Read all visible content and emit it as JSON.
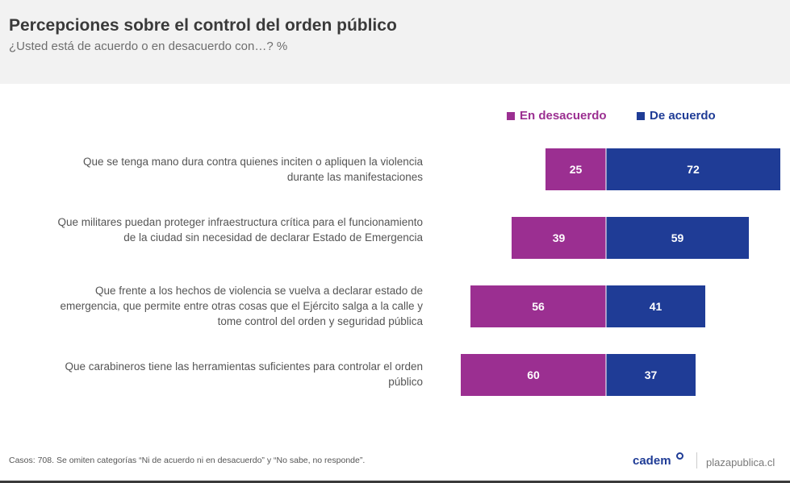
{
  "header": {
    "title": "Percepciones sobre el control del orden público",
    "subtitle": "¿Usted está de acuerdo o en desacuerdo con…? %"
  },
  "chart_data": {
    "type": "bar",
    "orientation": "horizontal-diverging",
    "categories": [
      "Que se tenga mano dura contra quienes inciten o apliquen la violencia durante las manifestaciones",
      "Que militares puedan proteger infraestructura crítica para el funcionamiento de la ciudad sin necesidad de declarar Estado de Emergencia",
      "Que frente a los hechos de violencia se vuelva a declarar estado de emergencia, que permite entre otras cosas que el Ejército salga a la calle y tome control del orden y seguridad pública",
      "Que carabineros tiene las herramientas suficientes para controlar el orden público"
    ],
    "series": [
      {
        "name": "En desacuerdo",
        "color": "#9b2f91",
        "values": [
          25,
          39,
          56,
          60
        ]
      },
      {
        "name": "De acuerdo",
        "color": "#1f3c96",
        "values": [
          72,
          59,
          41,
          37
        ]
      }
    ],
    "legend": "top-right",
    "grid": false
  },
  "footnote": "Casos: 708. Se omiten categorías “Ni de acuerdo ni en desacuerdo” y “No sabe, no responde”.",
  "brand": {
    "cadem": "cadem",
    "site": "plazapublica.cl"
  }
}
